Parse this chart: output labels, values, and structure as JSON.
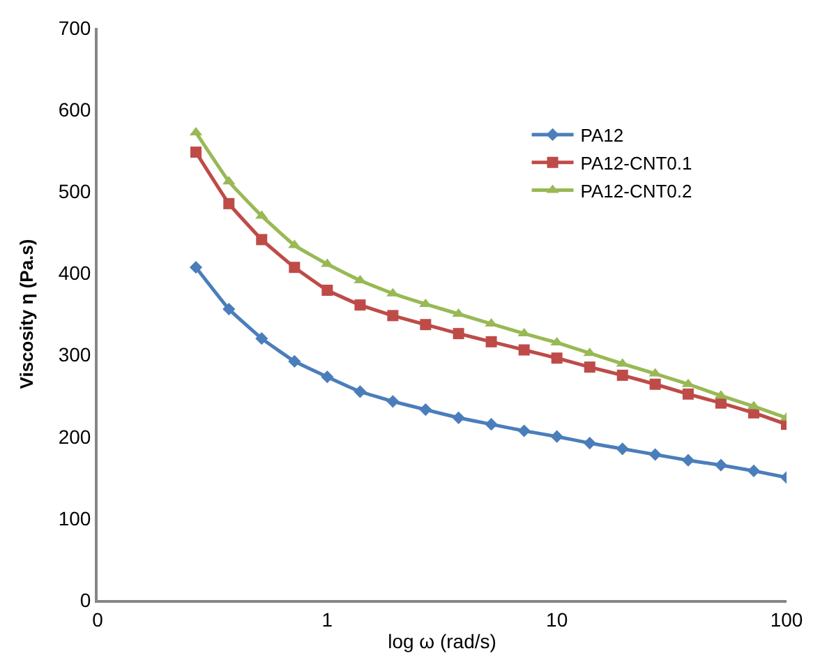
{
  "chart_data": {
    "type": "line",
    "xlabel": "log ω (rad/s)",
    "ylabel": "Viscosity η (Pa.s)",
    "log": "x",
    "x": [
      0.268,
      0.373,
      0.518,
      0.72,
      1,
      1.39,
      1.93,
      2.68,
      3.73,
      5.18,
      7.2,
      10,
      13.9,
      19.3,
      26.8,
      37.3,
      51.8,
      72,
      100
    ],
    "series": [
      {
        "name": "PA12",
        "color": "#4a7ebb",
        "marker": "diamond",
        "values": [
          407,
          356,
          320,
          292,
          273,
          255,
          243,
          233,
          223,
          215,
          207,
          200,
          192,
          185,
          178,
          171,
          165,
          158,
          150
        ]
      },
      {
        "name": "PA12-CNT0.1",
        "color": "#be4b48",
        "marker": "square",
        "values": [
          548,
          485,
          441,
          407,
          379,
          361,
          348,
          337,
          326,
          316,
          306,
          296,
          285,
          275,
          264,
          252,
          241,
          229,
          215
        ]
      },
      {
        "name": "PA12-CNT0.2",
        "color": "#98b954",
        "marker": "triangle",
        "values": [
          572,
          512,
          470,
          434,
          411,
          391,
          375,
          362,
          350,
          338,
          326,
          315,
          302,
          289,
          277,
          264,
          250,
          237,
          223
        ]
      }
    ],
    "xlim": [
      0.1,
      100
    ],
    "xticks": [
      {
        "value": 0.1,
        "label": "0"
      },
      1,
      10,
      100
    ],
    "ylim": [
      0,
      700
    ],
    "yticks": [
      0,
      100,
      200,
      300,
      400,
      500,
      600,
      700
    ],
    "grid": false,
    "legend": "top right",
    "line_style": "solid"
  }
}
